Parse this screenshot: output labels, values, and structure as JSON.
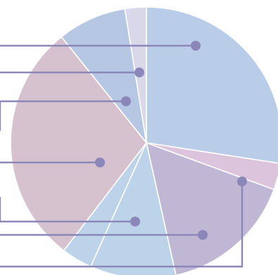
{
  "chart_data": {
    "type": "pie",
    "title": "",
    "categories": [
      "",
      "",
      "",
      "",
      "",
      "",
      "",
      ""
    ],
    "values": [
      31.4,
      3.6,
      18.2,
      11.7,
      4.2,
      33.0,
      9.4,
      2.9
    ],
    "colors": [
      "#b9cde9",
      "#dcc4dc",
      "#c0b7d4",
      "#bcd3e9",
      "#bcd3e9",
      "#d6c2cf",
      "#b5c7e2",
      "#d9d7ea"
    ],
    "start_angle_deg": 0,
    "direction": "clockwise",
    "legend": "none",
    "grid": false,
    "leader_line_color": "#8b87b8",
    "leader_dot_color": "#8b87b8"
  }
}
